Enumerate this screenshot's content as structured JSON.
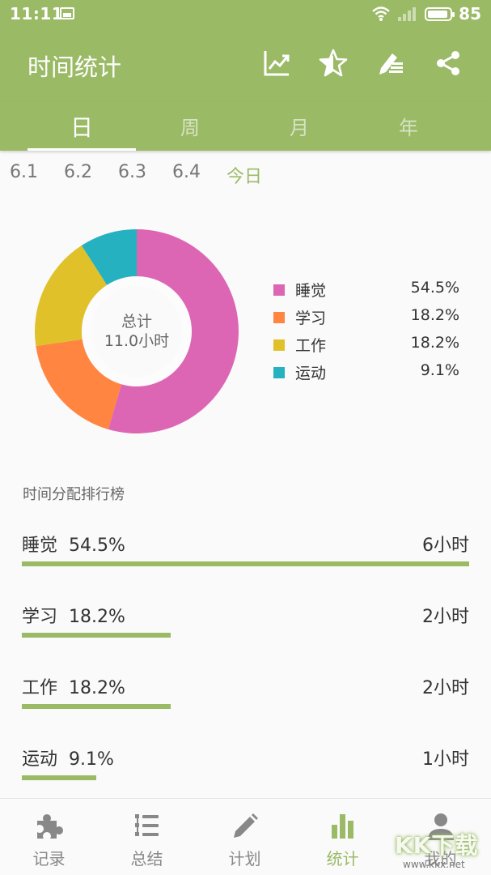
{
  "status_bar": {
    "time": "11:11",
    "battery": "85"
  },
  "toolbar": {
    "title": "时间统计",
    "icons": [
      "chart-trend-icon",
      "star-icon",
      "edit-note-icon",
      "share-icon"
    ]
  },
  "tabs": [
    {
      "label": "日",
      "active": true
    },
    {
      "label": "周",
      "active": false
    },
    {
      "label": "月",
      "active": false
    },
    {
      "label": "年",
      "active": false
    }
  ],
  "dates": [
    "6.1",
    "6.2",
    "6.3",
    "6.4",
    "今日"
  ],
  "summary": {
    "label": "总计",
    "value": "11.0小时"
  },
  "chart_data": {
    "type": "pie",
    "categories": [
      "睡觉",
      "学习",
      "工作",
      "运动"
    ],
    "values": [
      54.5,
      18.2,
      18.2,
      9.1
    ],
    "value_labels": [
      "54.5%",
      "18.2%",
      "18.2%",
      "9.1%"
    ],
    "colors": [
      "#dd66b4",
      "#ff8540",
      "#e1c129",
      "#26b1c0"
    ],
    "legend_position": "right"
  },
  "ranking": {
    "title": "时间分配排行榜",
    "items": [
      {
        "name": "睡觉",
        "percent": "54.5%",
        "duration": "6小时",
        "fraction": 1.0
      },
      {
        "name": "学习",
        "percent": "18.2%",
        "duration": "2小时",
        "fraction": 0.333
      },
      {
        "name": "工作",
        "percent": "18.2%",
        "duration": "2小时",
        "fraction": 0.333
      },
      {
        "name": "运动",
        "percent": "9.1%",
        "duration": "1小时",
        "fraction": 0.167
      }
    ]
  },
  "bottom_nav": [
    {
      "label": "记录",
      "icon": "puzzle-icon",
      "active": false
    },
    {
      "label": "总结",
      "icon": "list-icon",
      "active": false
    },
    {
      "label": "计划",
      "icon": "pencil-icon",
      "active": false
    },
    {
      "label": "统计",
      "icon": "bar-chart-icon",
      "active": true
    },
    {
      "label": "我的",
      "icon": "person-icon",
      "active": false
    }
  ],
  "watermark": {
    "text": "KK下载",
    "url": "www.kkx.net"
  },
  "colors": {
    "primary": "#9aba66",
    "background": "#fafafa"
  }
}
